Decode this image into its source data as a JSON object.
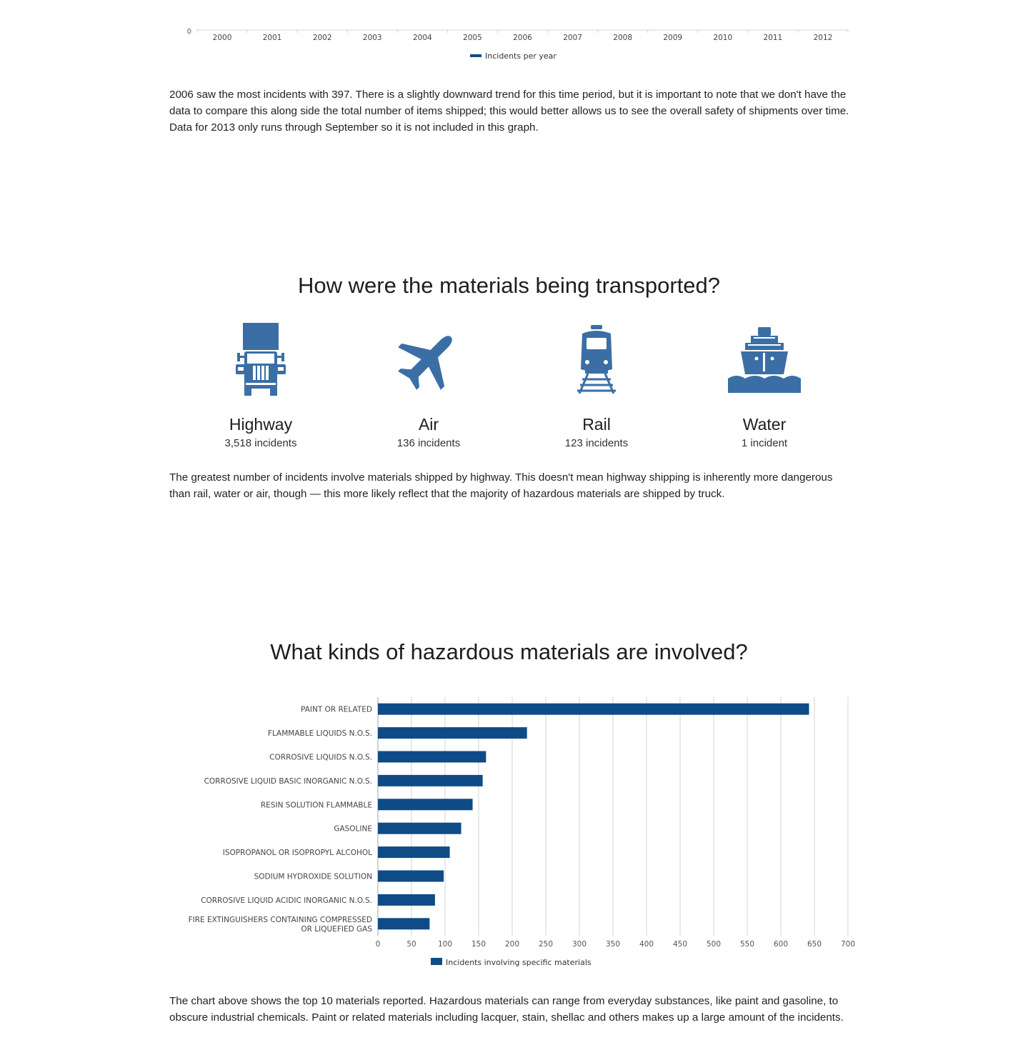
{
  "top_chart": {
    "type": "line",
    "y_tick": "0",
    "x": [
      "2000",
      "2001",
      "2002",
      "2003",
      "2004",
      "2005",
      "2006",
      "2007",
      "2008",
      "2009",
      "2010",
      "2011",
      "2012"
    ],
    "legend": "Incidents per year",
    "color": "#0f4c87"
  },
  "paragraphs": {
    "p1": "2006 saw the most incidents with 397. There is a slightly downward trend for this time period, but it is important to note that we don't have the data to compare this along side the total number of items shipped; this would better allows us to see the overall safety of shipments over time. Data for 2013 only runs through September so it is not included in this graph.",
    "p2": "The greatest number of incidents involve materials shipped by highway. This doesn't mean highway shipping is inherently more dangerous than rail, water or air, though — this more likely reflect that the majority of hazardous materials are shipped by truck.",
    "p3": "The chart above shows the top 10 materials reported. Hazardous materials can range from everyday substances, like paint and gasoline, to obscure industrial chemicals. Paint or related materials including lacquer, stain, shellac and others makes up a large amount of the incidents."
  },
  "headings": {
    "transport": "How were the materials being transported?",
    "materials": "What kinds of hazardous materials are involved?"
  },
  "modes": {
    "icon_color": "#3b6ea5",
    "highway": {
      "name": "Highway",
      "count": "3,518 incidents",
      "icon": "truck-icon"
    },
    "air": {
      "name": "Air",
      "count": "136 incidents",
      "icon": "airplane-icon"
    },
    "rail": {
      "name": "Rail",
      "count": "123 incidents",
      "icon": "train-icon"
    },
    "water": {
      "name": "Water",
      "count": "1 incident",
      "icon": "ship-icon"
    }
  },
  "chart_data": {
    "type": "bar",
    "orientation": "horizontal",
    "categories": [
      "PAINT OR RELATED",
      "FLAMMABLE LIQUIDS N.O.S.",
      "CORROSIVE LIQUIDS N.O.S.",
      "CORROSIVE LIQUID BASIC INORGANIC N.O.S.",
      "RESIN SOLUTION FLAMMABLE",
      "GASOLINE",
      "ISOPROPANOL OR ISOPROPYL ALCOHOL",
      "SODIUM HYDROXIDE SOLUTION",
      "CORROSIVE LIQUID ACIDIC INORGANIC N.O.S.",
      "FIRE EXTINGUISHERS CONTAINING COMPRESSED OR LIQUEFIED GAS"
    ],
    "series": [
      {
        "name": "Incidents involving specific materials",
        "values": [
          642,
          222,
          161,
          156,
          141,
          124,
          107,
          98,
          85,
          77
        ]
      }
    ],
    "xlim": [
      0,
      700
    ],
    "x_ticks": [
      0,
      50,
      100,
      150,
      200,
      250,
      300,
      350,
      400,
      450,
      500,
      550,
      600,
      650,
      700
    ],
    "grid": true,
    "legend_position": "bottom",
    "color": "#0f4c87"
  }
}
